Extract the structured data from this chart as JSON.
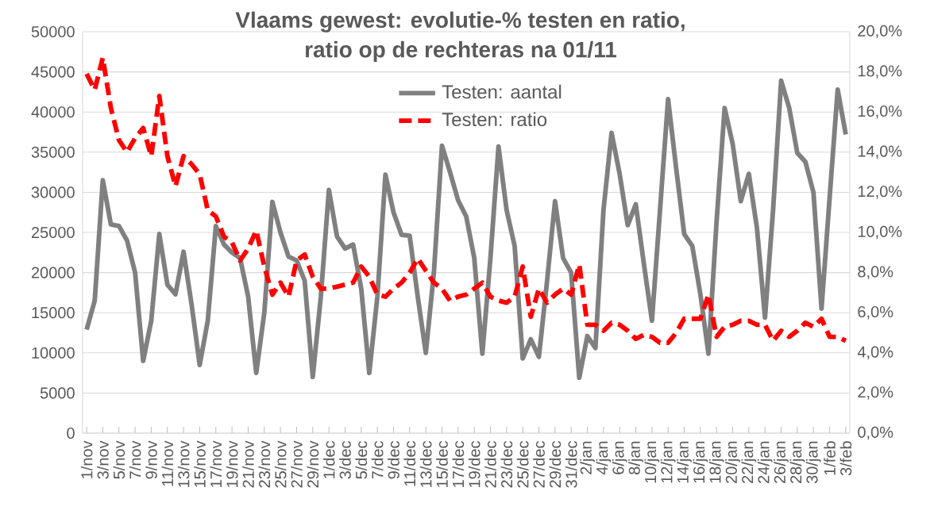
{
  "chart_data": {
    "type": "line",
    "title": "Vlaams gewest: evolutie-% testen en ratio,\nratio op de rechteras na 01/11",
    "categories": [
      "1/nov",
      null,
      "3/nov",
      null,
      "5/nov",
      null,
      "7/nov",
      null,
      "9/nov",
      null,
      "11/nov",
      null,
      "13/nov",
      null,
      "15/nov",
      null,
      "17/nov",
      null,
      "19/nov",
      null,
      "21/nov",
      null,
      "23/nov",
      null,
      "25/nov",
      null,
      "27/nov",
      null,
      "29/nov",
      null,
      "1/dec",
      null,
      "3/dec",
      null,
      "5/dec",
      null,
      "7/dec",
      null,
      "9/dec",
      null,
      "11/dec",
      null,
      "13/dec",
      null,
      "15/dec",
      null,
      "17/dec",
      null,
      "19/dec",
      null,
      "21/dec",
      null,
      "23/dec",
      null,
      "25/dec",
      null,
      "27/dec",
      null,
      "29/dec",
      null,
      "31/dec",
      null,
      "2/jan",
      null,
      "4/jan",
      null,
      "6/jan",
      null,
      "8/jan",
      null,
      "10/jan",
      null,
      "12/jan",
      null,
      "14/jan",
      null,
      "16/jan",
      null,
      "18/jan",
      null,
      "20/jan",
      null,
      "22/jan",
      null,
      "24/jan",
      null,
      "26/jan",
      null,
      "28/jan",
      null,
      "30/jan",
      null,
      "1/feb",
      null,
      "3/feb"
    ],
    "series": [
      {
        "name": "Testen: aantal",
        "color": "#808080",
        "line_style": "solid",
        "values": [
          12900,
          16500,
          31500,
          26000,
          25800,
          24000,
          20000,
          9000,
          14000,
          24800,
          18500,
          17300,
          22600,
          16000,
          8500,
          14000,
          25800,
          23500,
          22500,
          21800,
          17000,
          7500,
          15000,
          28800,
          25000,
          22000,
          21500,
          19000,
          7000,
          17000,
          30300,
          24500,
          23000,
          23500,
          18000,
          7500,
          17000,
          32200,
          27500,
          24700,
          24600,
          17000,
          10000,
          20000,
          35800,
          32500,
          29000,
          27000,
          21800,
          9900,
          21800,
          35700,
          27800,
          23300,
          9300,
          11700,
          9500,
          18800,
          28900,
          21800,
          20000,
          6900,
          12100,
          10600,
          27800,
          37400,
          32300,
          25900,
          28500,
          21100,
          14000,
          27800,
          41600,
          33000,
          24800,
          23300,
          17300,
          9900,
          26300,
          40500,
          36000,
          28900,
          32300,
          25600,
          14400,
          27800,
          43900,
          40500,
          34900,
          33800,
          30000,
          15500,
          29300,
          42800,
          37200
        ]
      },
      {
        "name": "Testen: ratio",
        "color": "#ff0000",
        "line_style": "dashed",
        "axis": "y2",
        "values": [
          17.9,
          17.1,
          18.7,
          16.2,
          14.6,
          14.0,
          14.7,
          15.2,
          13.8,
          16.8,
          13.8,
          12.3,
          13.8,
          13.4,
          12.9,
          11.1,
          10.8,
          9.8,
          9.5,
          8.6,
          9.2,
          10.1,
          8.3,
          6.9,
          7.5,
          6.8,
          8.6,
          8.9,
          7.8,
          7.2,
          7.2,
          7.3,
          7.4,
          7.5,
          8.3,
          7.8,
          6.9,
          6.8,
          7.2,
          7.5,
          8.0,
          8.7,
          8.1,
          7.5,
          7.2,
          6.6,
          6.8,
          6.9,
          7.2,
          7.5,
          6.8,
          6.6,
          6.5,
          6.8,
          8.3,
          5.8,
          7.2,
          6.5,
          6.9,
          7.2,
          6.9,
          8.4,
          5.4,
          5.4,
          5.1,
          5.5,
          5.4,
          5.1,
          4.7,
          4.9,
          4.8,
          4.5,
          4.5,
          5.0,
          5.7,
          5.7,
          5.7,
          6.9,
          4.8,
          5.3,
          5.4,
          5.6,
          5.6,
          5.4,
          5.4,
          4.6,
          5.1,
          4.8,
          5.1,
          5.5,
          5.3,
          5.7,
          4.8,
          4.8,
          4.6
        ]
      }
    ],
    "ylim": [
      0,
      50000
    ],
    "yticks": [
      0,
      5000,
      10000,
      15000,
      20000,
      25000,
      30000,
      35000,
      40000,
      45000,
      50000
    ],
    "y2lim": [
      0,
      20
    ],
    "y2ticks": [
      {
        "value": 0,
        "label": "0,0%"
      },
      {
        "value": 2,
        "label": "2,0%"
      },
      {
        "value": 4,
        "label": "4,0%"
      },
      {
        "value": 6,
        "label": "6,0%"
      },
      {
        "value": 8,
        "label": "8,0%"
      },
      {
        "value": 10,
        "label": "10,0%"
      },
      {
        "value": 12,
        "label": "12,0%"
      },
      {
        "value": 14,
        "label": "14,0%"
      },
      {
        "value": 16,
        "label": "16,0%"
      },
      {
        "value": 18,
        "label": "18,0%"
      },
      {
        "value": 20,
        "label": "20,0%"
      }
    ],
    "grid": "y",
    "legend": "top",
    "marker": "none"
  }
}
